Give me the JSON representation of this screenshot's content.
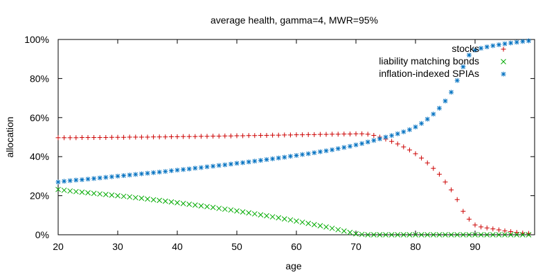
{
  "chart_data": {
    "type": "scatter",
    "title": "average health, gamma=4, MWR=95%",
    "xlabel": "age",
    "ylabel": "allocation",
    "xlim": [
      20,
      100
    ],
    "ylim": [
      0,
      1
    ],
    "x_ticks": [
      20,
      30,
      40,
      50,
      60,
      70,
      80,
      90
    ],
    "x_tick_labels": [
      "20",
      "30",
      "40",
      "50",
      "60",
      "70",
      "80",
      "90"
    ],
    "y_ticks": [
      0,
      0.2,
      0.4,
      0.6,
      0.8,
      1.0
    ],
    "y_tick_labels": [
      "0%",
      "20%",
      "40%",
      "60%",
      "80%",
      "100%"
    ],
    "grid": false,
    "legend_position": "top-right",
    "series": [
      {
        "name": "stocks",
        "marker": "plus",
        "color": "#cc0000",
        "x": [
          20,
          21,
          22,
          23,
          24,
          25,
          26,
          27,
          28,
          29,
          30,
          31,
          32,
          33,
          34,
          35,
          36,
          37,
          38,
          39,
          40,
          41,
          42,
          43,
          44,
          45,
          46,
          47,
          48,
          49,
          50,
          51,
          52,
          53,
          54,
          55,
          56,
          57,
          58,
          59,
          60,
          61,
          62,
          63,
          64,
          65,
          66,
          67,
          68,
          69,
          70,
          71,
          72,
          73,
          74,
          75,
          76,
          77,
          78,
          79,
          80,
          81,
          82,
          83,
          84,
          85,
          86,
          87,
          88,
          89,
          90,
          91,
          92,
          93,
          94,
          95,
          96,
          97,
          98,
          99
        ],
        "values": [
          0.497,
          0.497,
          0.497,
          0.497,
          0.498,
          0.498,
          0.498,
          0.498,
          0.498,
          0.499,
          0.499,
          0.499,
          0.5,
          0.5,
          0.5,
          0.5,
          0.501,
          0.501,
          0.501,
          0.502,
          0.502,
          0.503,
          0.503,
          0.503,
          0.504,
          0.504,
          0.505,
          0.505,
          0.506,
          0.506,
          0.507,
          0.507,
          0.508,
          0.508,
          0.509,
          0.509,
          0.51,
          0.51,
          0.511,
          0.511,
          0.512,
          0.512,
          0.513,
          0.513,
          0.514,
          0.514,
          0.515,
          0.515,
          0.516,
          0.516,
          0.517,
          0.517,
          0.515,
          0.509,
          0.5,
          0.49,
          0.478,
          0.465,
          0.45,
          0.434,
          0.415,
          0.393,
          0.368,
          0.34,
          0.31,
          0.27,
          0.23,
          0.18,
          0.12,
          0.08,
          0.05,
          0.04,
          0.035,
          0.03,
          0.025,
          0.02,
          0.016,
          0.012,
          0.009,
          0.007
        ]
      },
      {
        "name": "liability matching bonds",
        "marker": "cross",
        "color": "#00aa00",
        "x": [
          20,
          21,
          22,
          23,
          24,
          25,
          26,
          27,
          28,
          29,
          30,
          31,
          32,
          33,
          34,
          35,
          36,
          37,
          38,
          39,
          40,
          41,
          42,
          43,
          44,
          45,
          46,
          47,
          48,
          49,
          50,
          51,
          52,
          53,
          54,
          55,
          56,
          57,
          58,
          59,
          60,
          61,
          62,
          63,
          64,
          65,
          66,
          67,
          68,
          69,
          70,
          71,
          72,
          73,
          74,
          75,
          76,
          77,
          78,
          79,
          80,
          81,
          82,
          83,
          84,
          85,
          86,
          87,
          88,
          89,
          90,
          91,
          92,
          93,
          94,
          95,
          96,
          97,
          98,
          99
        ],
        "values": [
          0.232,
          0.228,
          0.224,
          0.221,
          0.218,
          0.215,
          0.212,
          0.209,
          0.206,
          0.203,
          0.2,
          0.197,
          0.194,
          0.19,
          0.187,
          0.183,
          0.179,
          0.176,
          0.172,
          0.168,
          0.164,
          0.16,
          0.156,
          0.152,
          0.148,
          0.144,
          0.14,
          0.135,
          0.131,
          0.127,
          0.122,
          0.117,
          0.112,
          0.107,
          0.102,
          0.097,
          0.092,
          0.087,
          0.081,
          0.076,
          0.07,
          0.064,
          0.058,
          0.052,
          0.046,
          0.04,
          0.033,
          0.026,
          0.019,
          0.012,
          0.005,
          0.002,
          0.0,
          0.0,
          0.0,
          0.0,
          0.0,
          0.0,
          0.0,
          0.0,
          0.0,
          0.0,
          0.0,
          0.0,
          0.0,
          0.0,
          0.0,
          0.0,
          0.0,
          0.0,
          0.0,
          0.0,
          0.0,
          0.0,
          0.0,
          0.0,
          0.0,
          0.0,
          0.0,
          0.0
        ]
      },
      {
        "name": "inflation-indexed SPIAs",
        "marker": "star",
        "color": "#0070c0",
        "x": [
          20,
          21,
          22,
          23,
          24,
          25,
          26,
          27,
          28,
          29,
          30,
          31,
          32,
          33,
          34,
          35,
          36,
          37,
          38,
          39,
          40,
          41,
          42,
          43,
          44,
          45,
          46,
          47,
          48,
          49,
          50,
          51,
          52,
          53,
          54,
          55,
          56,
          57,
          58,
          59,
          60,
          61,
          62,
          63,
          64,
          65,
          66,
          67,
          68,
          69,
          70,
          71,
          72,
          73,
          74,
          75,
          76,
          77,
          78,
          79,
          80,
          81,
          82,
          83,
          84,
          85,
          86,
          87,
          88,
          89,
          90,
          91,
          92,
          93,
          94,
          95,
          96,
          97,
          98,
          99
        ],
        "values": [
          0.27,
          0.274,
          0.277,
          0.28,
          0.282,
          0.285,
          0.288,
          0.291,
          0.294,
          0.297,
          0.3,
          0.303,
          0.306,
          0.309,
          0.312,
          0.315,
          0.318,
          0.321,
          0.324,
          0.328,
          0.331,
          0.334,
          0.337,
          0.341,
          0.344,
          0.348,
          0.351,
          0.355,
          0.358,
          0.362,
          0.366,
          0.369,
          0.373,
          0.377,
          0.381,
          0.385,
          0.389,
          0.393,
          0.397,
          0.402,
          0.406,
          0.411,
          0.415,
          0.42,
          0.425,
          0.43,
          0.435,
          0.441,
          0.447,
          0.453,
          0.46,
          0.467,
          0.475,
          0.483,
          0.491,
          0.5,
          0.508,
          0.517,
          0.527,
          0.538,
          0.552,
          0.57,
          0.592,
          0.618,
          0.648,
          0.685,
          0.73,
          0.79,
          0.86,
          0.92,
          0.945,
          0.955,
          0.962,
          0.968,
          0.973,
          0.978,
          0.982,
          0.986,
          0.99,
          0.993
        ]
      }
    ]
  }
}
